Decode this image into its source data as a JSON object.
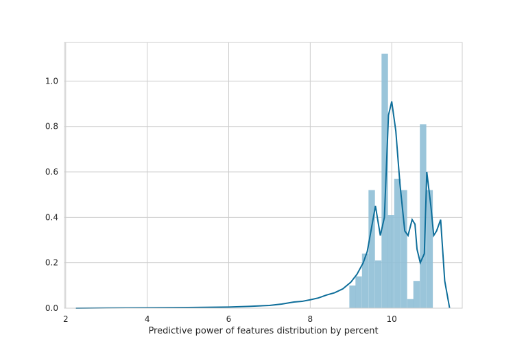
{
  "chart_data": {
    "type": "bar",
    "xlabel": "Predictive power of features distribution by percent",
    "ylabel": "",
    "xlim": [
      1.97,
      11.73
    ],
    "ylim": [
      0,
      1.17
    ],
    "x_ticks": [
      2,
      4,
      6,
      8,
      10
    ],
    "y_ticks": [
      0.0,
      0.2,
      0.4,
      0.6,
      0.8,
      1.0
    ],
    "x_tick_labels": [
      "2",
      "4",
      "6",
      "8",
      "10"
    ],
    "y_tick_labels": [
      "0.0",
      "0.2",
      "0.4",
      "0.6",
      "0.8",
      "1.0"
    ],
    "grid": true,
    "colors": {
      "bar": "#8fbfd6",
      "line": "#0e6e9a",
      "grid": "#cccccc",
      "frame": "#cccccc"
    },
    "histogram": {
      "bin_width": 0.158,
      "bin_starts": [
        8.96,
        9.11,
        9.27,
        9.43,
        9.59,
        9.75,
        9.9,
        10.06,
        10.22,
        10.38,
        10.53,
        10.69,
        10.85,
        11.01
      ],
      "density": [
        0.1,
        0.14,
        0.24,
        0.52,
        0.21,
        1.12,
        0.41,
        0.57,
        0.52,
        0.04,
        0.12,
        0.81,
        0.52,
        0.0
      ]
    },
    "series": [
      {
        "type": "kde",
        "x": [
          2.25,
          3.0,
          4.0,
          5.0,
          6.0,
          6.5,
          7.0,
          7.3,
          7.6,
          7.8,
          8.0,
          8.2,
          8.4,
          8.6,
          8.8,
          9.0,
          9.15,
          9.3,
          9.4,
          9.5,
          9.6,
          9.72,
          9.82,
          9.92,
          10.0,
          10.1,
          10.2,
          10.32,
          10.4,
          10.5,
          10.57,
          10.62,
          10.7,
          10.8,
          10.86,
          10.96,
          11.03,
          11.1,
          11.2,
          11.3,
          11.42
        ],
        "y": [
          0.0,
          0.001,
          0.002,
          0.003,
          0.005,
          0.008,
          0.012,
          0.018,
          0.027,
          0.03,
          0.037,
          0.045,
          0.058,
          0.068,
          0.085,
          0.115,
          0.15,
          0.2,
          0.25,
          0.35,
          0.45,
          0.32,
          0.4,
          0.85,
          0.91,
          0.78,
          0.55,
          0.34,
          0.32,
          0.39,
          0.37,
          0.26,
          0.2,
          0.24,
          0.6,
          0.45,
          0.32,
          0.34,
          0.39,
          0.12,
          0.0
        ]
      }
    ]
  }
}
